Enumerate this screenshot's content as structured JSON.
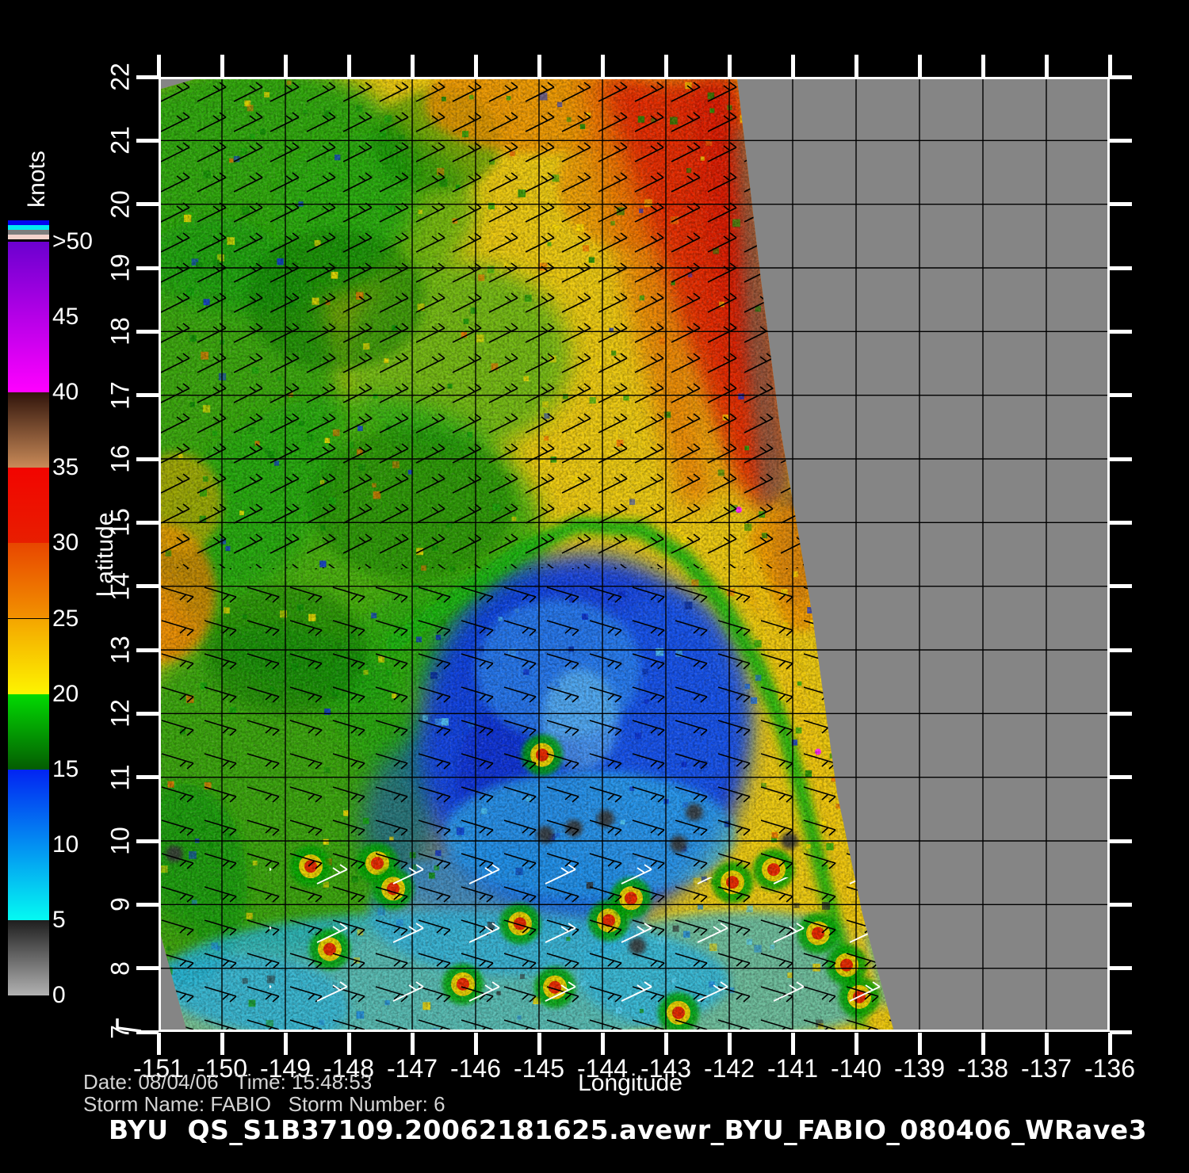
{
  "colorbar": {
    "label": "knots",
    "tick_labels": [
      ">50",
      "45",
      "40",
      "35",
      "30",
      "25",
      "20",
      "15",
      "10",
      "5",
      "0"
    ],
    "tick_values": [
      50,
      45,
      40,
      35,
      30,
      25,
      20,
      15,
      10,
      5,
      0
    ],
    "flags": [
      "#0202f2",
      "#02e8f2",
      "#7d7d7d",
      "#f4d2cc"
    ],
    "segments": [
      {
        "hi": 50,
        "lo": 40,
        "top": "#6b00cf",
        "bottom": "#ff00ff"
      },
      {
        "hi": 40,
        "lo": 35,
        "top": "#30140b",
        "bottom": "#c98a58"
      },
      {
        "hi": 35,
        "lo": 30,
        "top": "#f20400",
        "bottom": "#e81e00"
      },
      {
        "hi": 30,
        "lo": 25,
        "top": "#e84600",
        "bottom": "#f29200"
      },
      {
        "hi": 25,
        "lo": 20,
        "top": "#f4a500",
        "bottom": "#fdf400"
      },
      {
        "hi": 20,
        "lo": 15,
        "top": "#02da02",
        "bottom": "#045c02"
      },
      {
        "hi": 15,
        "lo": 5,
        "top": "#0224f2",
        "bottom": "#04faf2"
      },
      {
        "hi": 5,
        "lo": 0,
        "top": "#1e1e1e",
        "bottom": "#b2b2b2"
      }
    ]
  },
  "axes": {
    "x": {
      "label": "Longitude",
      "ticks": [
        "-151",
        "-150",
        "-149",
        "-148",
        "-147",
        "-146",
        "-145",
        "-144",
        "-143",
        "-142",
        "-141",
        "-140",
        "-139",
        "-138",
        "-137",
        "-136"
      ]
    },
    "y": {
      "label": "Latitude",
      "ticks": [
        "7",
        "8",
        "9",
        "10",
        "11",
        "12",
        "13",
        "14",
        "15",
        "16",
        "17",
        "18",
        "19",
        "20",
        "21",
        "22"
      ]
    }
  },
  "footer": {
    "date_line": "Date: 08/04/06   Time: 15:48:53",
    "storm_line": "Storm Name: FABIO   Storm Number: 6",
    "title": "BYU  QS_S1B37109.20062181625.avewr_BYU_FABIO_080406_WRave3"
  },
  "chart_data": {
    "type": "heatmap",
    "title": "BYU  QS_S1B37109.20062181625.avewr_BYU_FABIO_080406_WRave3",
    "xlabel": "Longitude",
    "ylabel": "Latitude",
    "xlim": [
      -151,
      -136
    ],
    "ylim": [
      7,
      22
    ],
    "units": "knots",
    "grid": true,
    "legend_position": "left",
    "base_color": "#eecb10",
    "no_data_color": "#858585",
    "wind_barb_colors": [
      "#000000",
      "#ffffff"
    ],
    "swath": {
      "note": "observed scatterometer swath; gray at right = no data",
      "polygon": [
        [
          -150.3,
          22
        ],
        [
          -141.88,
          22
        ],
        [
          -141.5,
          18.8
        ],
        [
          -141.2,
          16.5
        ],
        [
          -140.7,
          13.6
        ],
        [
          -140.3,
          10.75
        ],
        [
          -139.9,
          8.85
        ],
        [
          -139.4,
          7.0
        ],
        [
          -150.55,
          7.0
        ],
        [
          -151.0,
          8.65
        ],
        [
          -151.0,
          21.8
        ]
      ]
    },
    "regions": [
      {
        "t": "e",
        "x": -149.5,
        "y": 20.3,
        "rx": 2.6,
        "ry": 2.0,
        "c": "#1ea60b",
        "o": 0.9,
        "f": "b2",
        "knots": "15-20"
      },
      {
        "t": "e",
        "x": -150.1,
        "y": 16.8,
        "rx": 2.0,
        "ry": 3.0,
        "c": "#1aa30a",
        "o": 0.85,
        "f": "b2",
        "knots": "15-20"
      },
      {
        "t": "e",
        "x": -147.9,
        "y": 14.6,
        "rx": 3.0,
        "ry": 2.4,
        "c": "#22ab0e",
        "o": 0.8,
        "f": "b2",
        "knots": "15-20"
      },
      {
        "t": "e",
        "x": -149.2,
        "y": 10.8,
        "rx": 2.6,
        "ry": 2.6,
        "c": "#1aa00c",
        "o": 0.85,
        "f": "b2",
        "knots": "15-20"
      },
      {
        "t": "e",
        "x": -146.3,
        "y": 17.6,
        "rx": 1.8,
        "ry": 1.5,
        "c": "#28b012",
        "o": 0.6,
        "f": "b2",
        "knots": "15-20"
      },
      {
        "t": "e",
        "x": -147.6,
        "y": 19.9,
        "rx": 1.6,
        "ry": 1.2,
        "c": "#25ae10",
        "o": 0.6,
        "f": "b2",
        "knots": "15-20"
      },
      {
        "t": "e",
        "x": -145.9,
        "y": 12.4,
        "rx": 2.4,
        "ry": 1.8,
        "c": "#1ea80d",
        "o": 0.6,
        "f": "b2",
        "knots": "15-20"
      },
      {
        "t": "e",
        "x": -150.6,
        "y": 9.3,
        "rx": 1.0,
        "ry": 1.6,
        "c": "#149c09",
        "o": 0.8,
        "f": "b1",
        "knots": "15-20"
      },
      {
        "t": "e",
        "x": -148.2,
        "y": 18.5,
        "rx": 1.4,
        "ry": 1.1,
        "c": "#0b7e04",
        "o": 0.5,
        "f": "b1",
        "knots": "15"
      },
      {
        "t": "e",
        "x": -147.0,
        "y": 15.3,
        "rx": 1.6,
        "ry": 1.2,
        "c": "#0c8005",
        "o": 0.45,
        "f": "b1",
        "knots": "15"
      },
      {
        "t": "e",
        "x": -149.0,
        "y": 13.0,
        "rx": 1.3,
        "ry": 1.0,
        "c": "#0a7a04",
        "o": 0.45,
        "f": "b1",
        "knots": "15"
      },
      {
        "t": "e",
        "x": -146.6,
        "y": 21.0,
        "rx": 1.0,
        "ry": 0.8,
        "c": "#0e8a06",
        "o": 0.5,
        "f": "b1",
        "knots": "15"
      },
      {
        "t": "e",
        "x": -145.0,
        "y": 21.6,
        "rx": 1.8,
        "ry": 0.8,
        "c": "#f09000",
        "o": 0.8,
        "f": "b1",
        "knots": "25-30"
      },
      {
        "t": "e",
        "x": -143.6,
        "y": 20.3,
        "rx": 1.1,
        "ry": 1.0,
        "c": "#ee8600",
        "o": 0.6,
        "f": "b1",
        "knots": "25-30"
      },
      {
        "t": "e",
        "x": -151.0,
        "y": 13.9,
        "rx": 0.9,
        "ry": 1.1,
        "c": "#ef7d00",
        "o": 0.75,
        "f": "b1",
        "knots": "25-30"
      },
      {
        "t": "e",
        "x": -150.7,
        "y": 15.3,
        "rx": 0.7,
        "ry": 0.8,
        "c": "#f5a800",
        "o": 0.55,
        "f": "b1",
        "knots": "25"
      },
      {
        "t": "p",
        "pts": [
          [
            -144.45,
            22
          ],
          [
            -143.9,
            22
          ],
          [
            -143.2,
            19.8
          ],
          [
            -142.6,
            17.3
          ],
          [
            -142.2,
            15.4
          ],
          [
            -142.75,
            15.2
          ],
          [
            -143.35,
            17.5
          ],
          [
            -144.05,
            20.2
          ]
        ],
        "c": "#ee6a00",
        "o": 0.65,
        "f": "b2",
        "knots": "25-30"
      },
      {
        "t": "p",
        "pts": [
          [
            -144.05,
            22
          ],
          [
            -141.88,
            22
          ],
          [
            -141.45,
            18.6
          ],
          [
            -141.05,
            16.2
          ],
          [
            -141.35,
            15.1
          ],
          [
            -141.9,
            15.6
          ],
          [
            -142.8,
            18.1
          ],
          [
            -143.6,
            20.6
          ]
        ],
        "c": "#e62500",
        "o": 0.95,
        "f": "b2",
        "knots": "30-38"
      },
      {
        "t": "p",
        "pts": [
          [
            -142.6,
            22
          ],
          [
            -141.9,
            22
          ],
          [
            -141.5,
            18.8
          ],
          [
            -141.3,
            16.8
          ],
          [
            -141.9,
            17.4
          ],
          [
            -142.4,
            19.6
          ]
        ],
        "c": "#d81600",
        "o": 0.75,
        "f": "b2",
        "knots": "35"
      },
      {
        "t": "p",
        "pts": [
          [
            -141.9,
            21.2
          ],
          [
            -141.55,
            21.2
          ],
          [
            -141.25,
            17.4
          ],
          [
            -141.0,
            15.5
          ],
          [
            -141.5,
            15.2
          ],
          [
            -141.75,
            17.8
          ]
        ],
        "c": "#8a5c42",
        "o": 0.85,
        "f": "b3",
        "knots": "38-42"
      },
      {
        "t": "e",
        "x": -140.95,
        "y": 14.6,
        "rx": 0.35,
        "ry": 0.9,
        "c": "#7a4a34",
        "o": 0.8,
        "f": "b1",
        "knots": "40"
      },
      {
        "t": "e",
        "x": -140.9,
        "y": 14.3,
        "rx": 0.9,
        "ry": 1.0,
        "c": "#f29100",
        "o": 0.8,
        "f": "b1",
        "knots": "25-30"
      },
      {
        "t": "e",
        "x": -144.3,
        "y": 11.6,
        "rx": 2.6,
        "ry": 2.9,
        "c": "#0a3cec",
        "o": 0.95,
        "f": "b2",
        "knots": "10-15"
      },
      {
        "t": "e",
        "x": -143.0,
        "y": 12.1,
        "rx": 1.3,
        "ry": 1.8,
        "c": "#1256ee",
        "o": 0.8,
        "f": "b2",
        "knots": "10-15"
      },
      {
        "t": "e",
        "x": -146.2,
        "y": 10.3,
        "rx": 1.6,
        "ry": 1.5,
        "c": "#1246e6",
        "o": 0.5,
        "f": "b2",
        "knots": "10-15"
      },
      {
        "t": "e",
        "x": -145.3,
        "y": 11.0,
        "rx": 1.0,
        "ry": 1.2,
        "c": "#0a2cd0",
        "o": 0.6,
        "f": "b1",
        "knots": "10"
      },
      {
        "t": "e",
        "x": -144.7,
        "y": 12.7,
        "rx": 1.3,
        "ry": 1.1,
        "c": "#2e8cf2",
        "o": 0.7,
        "f": "b1",
        "knots": "8-10"
      },
      {
        "t": "e",
        "x": -144.35,
        "y": 11.9,
        "rx": 0.6,
        "ry": 0.8,
        "c": "#79d8f8",
        "o": 0.5,
        "f": "b1",
        "knots": "5-8"
      },
      {
        "t": "e",
        "x": -144.2,
        "y": 10.1,
        "rx": 2.3,
        "ry": 1.0,
        "c": "#2fb4ee",
        "o": 0.7,
        "f": "b1",
        "knots": "8-10"
      },
      {
        "t": "e",
        "x": -145.5,
        "y": 8.9,
        "rx": 2.2,
        "ry": 1.0,
        "c": "#1e8ee8",
        "o": 0.6,
        "f": "b1",
        "knots": "10"
      },
      {
        "t": "e",
        "x": -146.5,
        "y": 7.8,
        "rx": 4.5,
        "ry": 1.1,
        "c": "#25b8ea",
        "o": 0.75,
        "f": "b1",
        "knots": "8-12"
      },
      {
        "t": "e",
        "x": -141.8,
        "y": 7.9,
        "rx": 2.6,
        "ry": 1.0,
        "c": "#2ab8e8",
        "o": 0.65,
        "f": "b1",
        "knots": "8-12"
      },
      {
        "t": "e",
        "x": -149.8,
        "y": 7.4,
        "rx": 1.8,
        "ry": 0.8,
        "c": "#28b4e6",
        "o": 0.6,
        "f": "b1",
        "knots": "8-12"
      },
      {
        "t": "b",
        "pts": [
          [
            -147.3,
            13.1
          ],
          [
            -146.2,
            13.9
          ],
          [
            -145.3,
            14.55
          ],
          [
            -144.4,
            14.97
          ],
          [
            -143.4,
            14.9
          ],
          [
            -142.7,
            14.45
          ],
          [
            -142.1,
            13.7
          ],
          [
            -141.55,
            12.75
          ],
          [
            -141.15,
            11.8
          ],
          [
            -140.8,
            10.6
          ],
          [
            -140.5,
            9.4
          ],
          [
            -140.15,
            8.2
          ],
          [
            -139.9,
            7.2
          ]
        ],
        "c": "#12b70e",
        "w": 20,
        "o": 0.95,
        "f": "b1",
        "knots": "15-20 front"
      },
      {
        "t": "b",
        "pts": [
          [
            -141.8,
            14.6
          ],
          [
            -141.3,
            13.4
          ],
          [
            -140.9,
            12.2
          ],
          [
            -140.55,
            10.9
          ],
          [
            -140.25,
            9.6
          ],
          [
            -139.95,
            8.3
          ],
          [
            -139.7,
            7.2
          ]
        ],
        "c": "#f2c80a",
        "w": 26,
        "o": 0.9,
        "f": "b1",
        "knots": "20-25 edge band"
      }
    ],
    "convective_cells": [
      [
        -148.6,
        9.6
      ],
      [
        -147.55,
        9.65
      ],
      [
        -147.3,
        9.25
      ],
      [
        -146.2,
        7.75
      ],
      [
        -144.95,
        11.35
      ],
      [
        -145.3,
        8.7
      ],
      [
        -144.75,
        7.7
      ],
      [
        -143.9,
        8.75
      ],
      [
        -143.55,
        9.1
      ],
      [
        -141.95,
        9.35
      ],
      [
        -141.3,
        9.55
      ],
      [
        -140.6,
        8.55
      ],
      [
        -140.15,
        8.05
      ],
      [
        -142.8,
        7.3
      ],
      [
        -148.3,
        8.3
      ],
      [
        -139.95,
        7.55
      ]
    ],
    "rain_specks": [
      [
        -144.45,
        10.2
      ],
      [
        -143.95,
        10.35
      ],
      [
        -142.8,
        9.95
      ],
      [
        -142.55,
        10.45
      ],
      [
        -143.45,
        8.35
      ],
      [
        -150.75,
        9.8
      ],
      [
        -141.05,
        10.0
      ],
      [
        -144.9,
        10.1
      ]
    ],
    "magenta_dots": [
      [
        -141.85,
        15.2
      ],
      [
        -140.6,
        11.4
      ]
    ]
  }
}
